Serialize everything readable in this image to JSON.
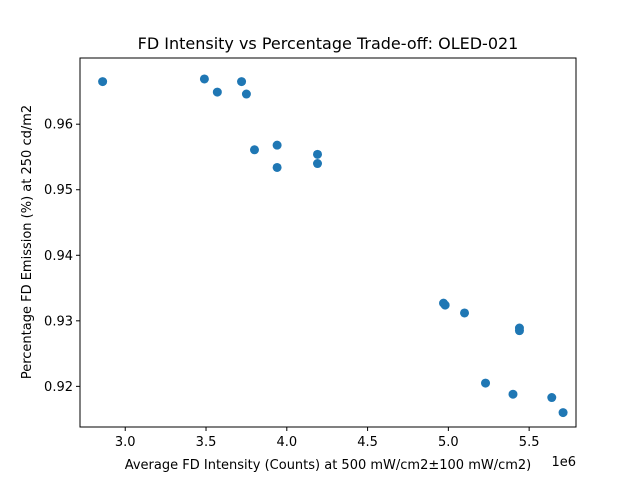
{
  "chart_data": {
    "type": "scatter",
    "title": "FD Intensity vs Percentage Trade-off: OLED-021",
    "xlabel": "Average FD Intensity (Counts) at 500 mW/cm2±100 mW/cm2)",
    "ylabel": "Percentage FD Emission (%) at 250 cd/m2",
    "x_offset_label": "1e6",
    "xlim": [
      2.72,
      5.79
    ],
    "ylim": [
      0.9138,
      0.9701
    ],
    "x_ticks": [
      3.0,
      3.5,
      4.0,
      4.5,
      5.0,
      5.5
    ],
    "x_tick_labels": [
      "3.0",
      "3.5",
      "4.0",
      "4.5",
      "5.0",
      "5.5"
    ],
    "y_ticks": [
      0.92,
      0.93,
      0.94,
      0.95,
      0.96
    ],
    "y_tick_labels": [
      "0.92",
      "0.93",
      "0.94",
      "0.95",
      "0.96"
    ],
    "grid": false,
    "marker_color": "#1f77b4",
    "points": [
      {
        "x": 2.86,
        "y": 0.9665
      },
      {
        "x": 3.49,
        "y": 0.9669
      },
      {
        "x": 3.57,
        "y": 0.9649
      },
      {
        "x": 3.72,
        "y": 0.9665
      },
      {
        "x": 3.75,
        "y": 0.9646
      },
      {
        "x": 3.8,
        "y": 0.9561
      },
      {
        "x": 3.94,
        "y": 0.9568
      },
      {
        "x": 3.94,
        "y": 0.9534
      },
      {
        "x": 4.19,
        "y": 0.9554
      },
      {
        "x": 4.19,
        "y": 0.954
      },
      {
        "x": 4.97,
        "y": 0.9327
      },
      {
        "x": 4.98,
        "y": 0.9324
      },
      {
        "x": 5.1,
        "y": 0.9312
      },
      {
        "x": 5.44,
        "y": 0.9289
      },
      {
        "x": 5.44,
        "y": 0.9285
      },
      {
        "x": 5.23,
        "y": 0.9205
      },
      {
        "x": 5.4,
        "y": 0.9188
      },
      {
        "x": 5.64,
        "y": 0.9183
      },
      {
        "x": 5.71,
        "y": 0.916
      }
    ]
  }
}
